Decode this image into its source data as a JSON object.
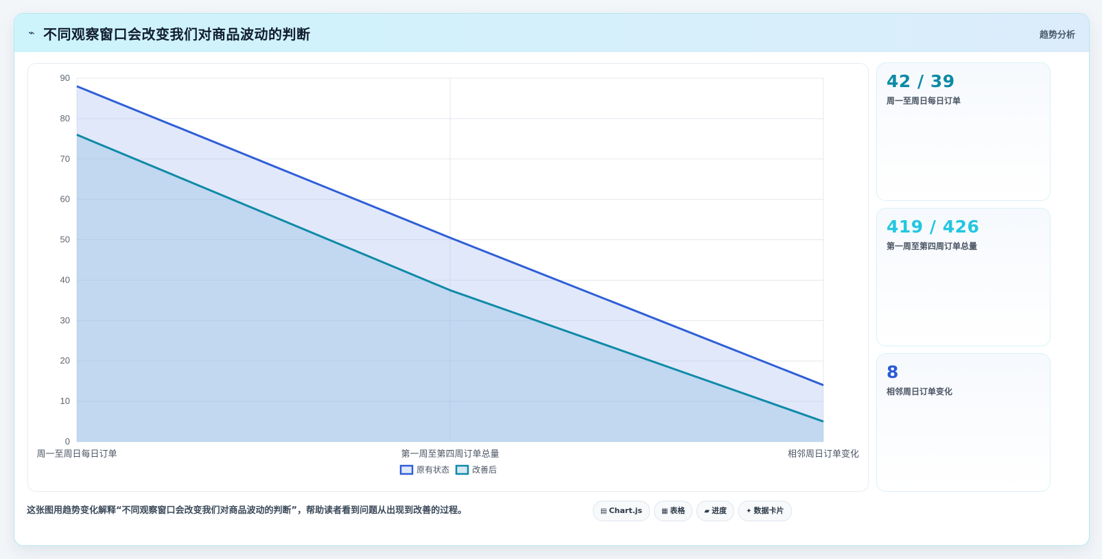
{
  "header": {
    "icon": "sparkline-icon",
    "title": "不同观察窗口会改变我们对商品波动的判断",
    "tag": "趋势分析"
  },
  "stats": [
    {
      "value": "42 / 39",
      "label": "周一至周日每日订单",
      "color": "#0e8aa6"
    },
    {
      "value": "419 / 426",
      "label": "第一周至第四周订单总量",
      "color": "#22c7e0"
    },
    {
      "value": "8",
      "label": "相邻周日订单变化",
      "color": "#2a5bd7"
    }
  ],
  "footer": {
    "note": "这张图用趋势变化解释“不同观察窗口会改变我们对商品波动的判断”，帮助读者看到问题从出现到改善的过程。",
    "chips": [
      {
        "icon": "chart-icon",
        "glyph": "▤",
        "label": "Chart.js"
      },
      {
        "icon": "table-icon",
        "glyph": "▦",
        "label": "表格"
      },
      {
        "icon": "progress-icon",
        "glyph": "▰",
        "label": "进度"
      },
      {
        "icon": "data-card-icon",
        "glyph": "✦",
        "label": "数据卡片"
      }
    ]
  },
  "chart_data": {
    "type": "area",
    "categories": [
      "周一至周日每日订单",
      "第一周至第四周订单总量",
      "相邻周日订单变化"
    ],
    "ylim": [
      0,
      90
    ],
    "yticks": [
      0,
      10,
      20,
      30,
      40,
      50,
      60,
      70,
      80,
      90
    ],
    "grid": true,
    "legend_position": "bottom",
    "series": [
      {
        "name": "原有状态",
        "values": [
          88,
          50.5,
          14
        ],
        "color": "#2f5fd6",
        "fill": "rgba(168,190,240,0.35)"
      },
      {
        "name": "改善后",
        "values": [
          76,
          37.5,
          5
        ],
        "color": "#0f8aa8",
        "fill": "rgba(120,180,220,0.30)"
      }
    ]
  }
}
